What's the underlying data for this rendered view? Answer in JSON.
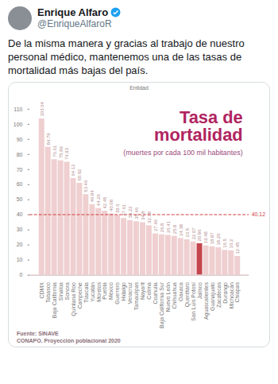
{
  "tweet": {
    "name": "Enrique Alfaro",
    "handle": "@EnriqueAlfaroR",
    "text": "De la misma manera y gracias al trabajo de nuestro personal médico, mantenemos una de las tasas de mortalidad más bajas del país."
  },
  "chart_data": {
    "type": "bar",
    "title": "Tasa de mortalidad",
    "subtitle": "(muertes por cada 100 mil habitantes)",
    "xlabel": "Entidad",
    "source": [
      "Fuente: SINAVE",
      "CONAPO. Proyección poblacional 2020"
    ],
    "categories": [
      "CDMX",
      "Tabasco",
      "Baja California",
      "Sinaloa",
      "Sonora",
      "Quintana Roo",
      "Campeche",
      "Tlaxcala",
      "Yucatán",
      "Morelos",
      "Puebla",
      "México",
      "Guerrero",
      "Hidalgo",
      "Veracruz",
      "Tamaulipas",
      "Nayarit",
      "Colima",
      "Coahuila",
      "Baja California Sur",
      "Nuevo León",
      "Chihuahua",
      "Oaxaca",
      "Querétaro",
      "San Luis Potosí",
      "Jalisco",
      "Aguascalientes",
      "Guanajuato",
      "Zacatecas",
      "Durango",
      "Michoacán",
      "Chiapas"
    ],
    "values": [
      103.64,
      84.79,
      76.61,
      75.89,
      74.93,
      64.12,
      60.92,
      53.46,
      46.84,
      44.26,
      42.45,
      40.68,
      39.6,
      37.61,
      36.22,
      35.46,
      34.8,
      32.78,
      27.46,
      26.8,
      26.41,
      25.8,
      24.38,
      23.5,
      22.07,
      20.86,
      19.48,
      18.87,
      18.26,
      16.5,
      16.2,
      12.45
    ],
    "colors": [
      "#efcfd0",
      "#efcfd0",
      "#efcfd0",
      "#efcfd0",
      "#efcfd0",
      "#efcfd0",
      "#efcfd0",
      "#efcfd0",
      "#efcfd0",
      "#efcfd0",
      "#efcfd0",
      "#efcfd0",
      "#efcfd0",
      "#efcfd0",
      "#efcfd0",
      "#efcfd0",
      "#efcfd0",
      "#efcfd0",
      "#efcfd0",
      "#efcfd0",
      "#efcfd0",
      "#efcfd0",
      "#efcfd0",
      "#efcfd0",
      "#efcfd0",
      "#c4454d",
      "#efcfd0",
      "#efcfd0",
      "#efcfd0",
      "#efcfd0",
      "#efcfd0",
      "#efcfd0"
    ],
    "reference_line": 40.12,
    "ylim": [
      0,
      110
    ],
    "yticks": [
      0,
      10,
      20,
      30,
      40,
      50,
      60,
      70,
      80,
      90,
      100,
      110
    ],
    "grid": false,
    "data_labels": true
  }
}
